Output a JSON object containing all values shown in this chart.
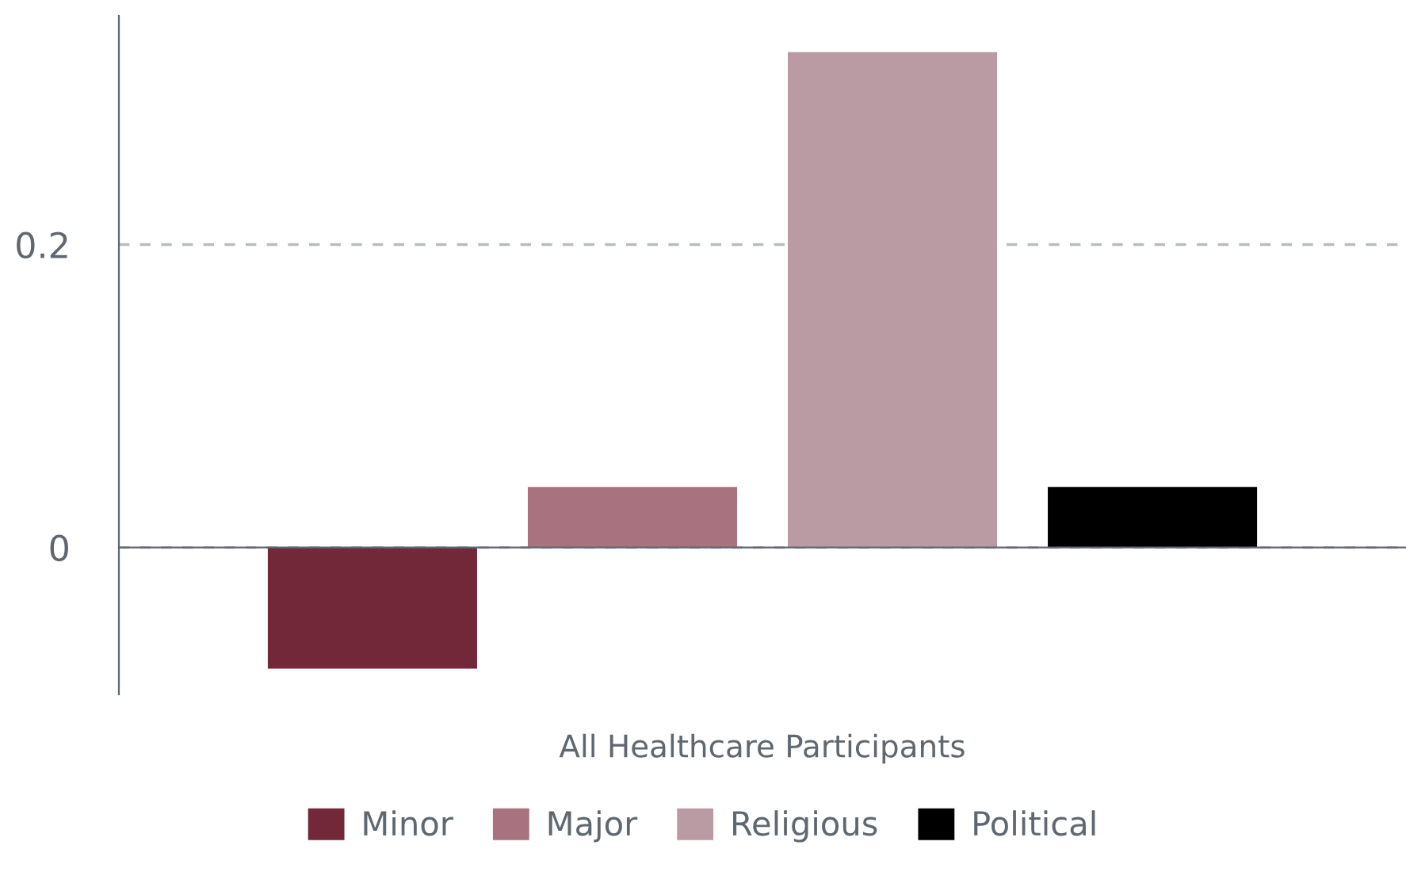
{
  "chart_data": {
    "type": "bar",
    "categories": [
      "All Healthcare Participants"
    ],
    "series": [
      {
        "name": "Minor",
        "color": "#722838",
        "values": [
          -0.08
        ]
      },
      {
        "name": "Major",
        "color": "#a8737f",
        "values": [
          0.04
        ]
      },
      {
        "name": "Religious",
        "color": "#bb9ba3",
        "values": [
          0.327
        ]
      },
      {
        "name": "Political",
        "color": "#000000",
        "values": [
          0.04
        ]
      }
    ],
    "ylim": [
      -0.097,
      0.351
    ],
    "yticks": [
      0,
      0.2
    ],
    "grid": "y",
    "legend": "bottom"
  }
}
